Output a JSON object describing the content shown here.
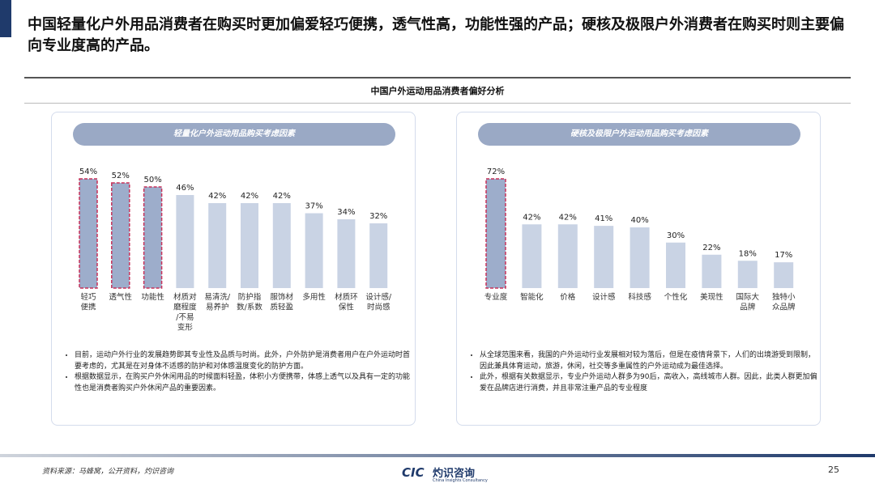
{
  "header": {
    "title": "中国轻量化户外用品消费者在购买时更加偏爱轻巧便携，透气性高，功能性强的产品；硬核及极限户外消费者在购买时则主要偏向专业度高的产品。",
    "subtitle": "中国户外运动用品消费者偏好分析"
  },
  "chart_data": [
    {
      "type": "bar",
      "title": "轻量化户外运动用品购买考虑因素",
      "categories": [
        "轻巧\n便携",
        "透气性",
        "功能性",
        "材质对\n磨程度\n/不易\n变形",
        "易清洗/\n易养护",
        "防护指\n数/系数",
        "服饰材\n质轻盈",
        "多用性",
        "材质环\n保性",
        "设计感/\n时尚感"
      ],
      "values": [
        54,
        52,
        50,
        46,
        42,
        42,
        42,
        37,
        34,
        32
      ],
      "value_labels": [
        "54%",
        "52%",
        "50%",
        "46%",
        "42%",
        "42%",
        "42%",
        "37%",
        "34%",
        "32%"
      ],
      "color": "#c9d3e4",
      "highlight": [
        0,
        1,
        2
      ],
      "highlight_color": "#9dadcb",
      "highlight_border": "#c8325a"
    },
    {
      "type": "bar",
      "title": "硬核及极限户外运动用品购买考虑因素",
      "categories": [
        "专业度",
        "智能化",
        "价格",
        "设计感",
        "科技感",
        "个性化",
        "美现性",
        "国际大\n品牌",
        "独特小\n众品牌"
      ],
      "values": [
        72,
        42,
        42,
        41,
        40,
        30,
        22,
        18,
        17
      ],
      "value_labels": [
        "72%",
        "42%",
        "42%",
        "41%",
        "40%",
        "30%",
        "22%",
        "18%",
        "17%"
      ],
      "color": "#c9d3e4",
      "highlight": [
        0
      ],
      "highlight_color": "#9dadcb",
      "highlight_border": "#c8325a"
    }
  ],
  "notes": [
    [
      "目前，运动户外行业的发展趋势即其专业性及品质与时尚。此外，户外防护是消费者用户在户外运动时首要考虑的，尤其是在对身体不适感的防护和对体感温度变化的防护方面。",
      "根据数据显示，在购买户外休闲用品的时候面料轻盈，体积小方便携带，体感上透气以及具有一定的功能性也是消费者购买户外休闲产品的重要因素。"
    ],
    [
      "从全球范围来看，我国的户外运动行业发展相对较为落后，但是在疫情背景下，人们的出境游受到限制，因此兼具体育运动，旅游，休闲，社交等多重属性的户外运动成为最佳选择。",
      "此外，根据有关数据显示，专业户外运动人群多为90后，高收入，高线城市人群。因此，此类人群更加偏爱在品牌店进行消费，并且非常注重产品的专业程度"
    ]
  ],
  "footer": {
    "source": "资料来源：马蜂窝，公开资料，灼识咨询",
    "logo": "CIC",
    "company": "灼识咨询",
    "company_en": "China Insights Consultancy",
    "page": "25"
  }
}
